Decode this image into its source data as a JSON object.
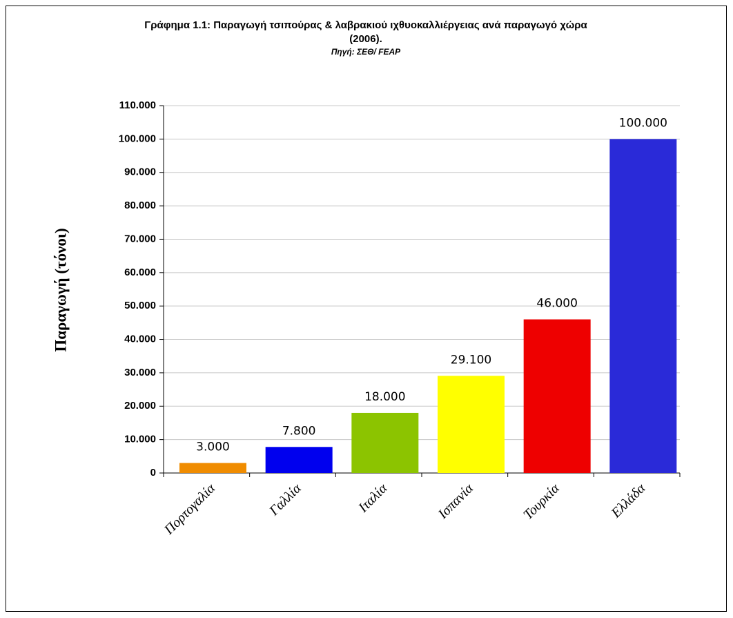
{
  "chart_data": {
    "type": "bar",
    "title": "Γράφημα 1.1: Παραγωγή τσιπούρας & λαβρακιού ιχθυοκαλλιέργειας ανά παραγωγό χώρα",
    "title_line2": "(2006).",
    "source": "Πηγή: ΣΕΘ/ FEAP",
    "y_label": "Παραγωγή (τόνοι)",
    "categories": [
      "Πορτογαλία",
      "Γαλλία",
      "Ιταλία",
      "Ισπανία",
      "Τουρκία",
      "Ελλάδα"
    ],
    "values": [
      3000,
      7800,
      18000,
      29100,
      46000,
      100000
    ],
    "value_labels": [
      "3.000",
      "7.800",
      "18.000",
      "29.100",
      "46.000",
      "100.000"
    ],
    "colors": [
      "#f08c00",
      "#0000ee",
      "#8cc400",
      "#ffff00",
      "#ee0000",
      "#2a2ad8"
    ],
    "ylim": [
      0,
      110000
    ],
    "yticks": [
      0,
      {
        "value": 10000,
        "label": "10.000"
      },
      {
        "value": 20000,
        "label": "20.000"
      },
      {
        "value": 30000,
        "label": "30.000"
      },
      {
        "value": 40000,
        "label": "40.000"
      },
      {
        "value": 50000,
        "label": "50.000"
      },
      {
        "value": 60000,
        "label": "60.000"
      },
      {
        "value": 70000,
        "label": "70.000"
      },
      {
        "value": 80000,
        "label": "80.000"
      },
      {
        "value": 90000,
        "label": "90.000"
      },
      {
        "value": 100000,
        "label": "100.000"
      },
      {
        "value": 110000,
        "label": "110.000"
      }
    ],
    "grid": true
  }
}
